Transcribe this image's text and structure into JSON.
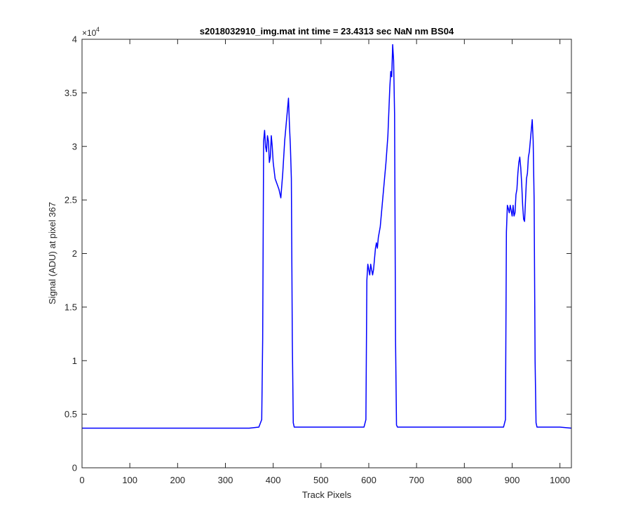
{
  "chart_data": {
    "type": "line",
    "title": "s2018032910_img.mat int time = 23.4313 sec  NaN nm BS04",
    "xlabel": "Track Pixels",
    "ylabel": "Signal (ADU) at pixel 367",
    "xlim": [
      0,
      1024
    ],
    "ylim": [
      0,
      40000
    ],
    "xticks": [
      0,
      100,
      200,
      300,
      400,
      500,
      600,
      700,
      800,
      900,
      1000
    ],
    "yticks": [
      0,
      5000,
      10000,
      15000,
      20000,
      25000,
      30000,
      35000,
      40000
    ],
    "xtick_labels": [
      "0",
      "100",
      "200",
      "300",
      "400",
      "500",
      "600",
      "700",
      "800",
      "900",
      "1000"
    ],
    "ytick_labels": [
      "0",
      "0.5",
      "1",
      "1.5",
      "2",
      "2.5",
      "3",
      "3.5",
      "4"
    ],
    "y_exponent_base": "×10",
    "y_exponent_power": "4",
    "grid": false,
    "legend": "none",
    "series": [
      {
        "color": "#0000ff",
        "x": [
          0,
          50,
          100,
          150,
          200,
          250,
          300,
          350,
          370,
          376,
          378,
          380,
          382,
          384,
          386,
          388,
          390,
          392,
          394,
          396,
          398,
          400,
          404,
          408,
          412,
          416,
          420,
          424,
          426,
          428,
          430,
          432,
          434,
          436,
          438,
          440,
          442,
          444,
          446,
          450,
          500,
          550,
          590,
          594,
          596,
          598,
          600,
          602,
          604,
          606,
          608,
          610,
          612,
          614,
          616,
          618,
          620,
          624,
          628,
          632,
          636,
          640,
          644,
          646,
          648,
          650,
          652,
          654,
          656,
          658,
          660,
          700,
          750,
          800,
          850,
          882,
          886,
          888,
          890,
          892,
          894,
          896,
          898,
          900,
          902,
          904,
          906,
          908,
          910,
          912,
          914,
          916,
          918,
          920,
          922,
          924,
          926,
          928,
          930,
          932,
          934,
          936,
          938,
          940,
          942,
          944,
          946,
          948,
          950,
          952,
          954,
          980,
          1000,
          1024
        ],
        "y": [
          3700,
          3700,
          3700,
          3700,
          3700,
          3700,
          3700,
          3700,
          3800,
          4500,
          12000,
          30500,
          31500,
          30000,
          29500,
          31000,
          30500,
          28500,
          29000,
          31000,
          30000,
          28500,
          27000,
          26500,
          26000,
          25200,
          27500,
          30500,
          31500,
          32500,
          33500,
          34500,
          32000,
          30000,
          27000,
          12000,
          4200,
          3800,
          3800,
          3800,
          3800,
          3800,
          3800,
          4500,
          17500,
          19000,
          18500,
          18000,
          19000,
          18500,
          18000,
          18500,
          19500,
          20500,
          21000,
          20500,
          21500,
          22500,
          24500,
          26500,
          28500,
          31000,
          35500,
          37000,
          36500,
          39500,
          38000,
          33000,
          12000,
          4000,
          3800,
          3800,
          3800,
          3800,
          3800,
          3800,
          4500,
          22000,
          24500,
          24200,
          23800,
          24500,
          24000,
          23500,
          24500,
          23500,
          23800,
          25500,
          26000,
          27500,
          28500,
          29000,
          28000,
          26500,
          24500,
          23200,
          23000,
          25000,
          27000,
          27500,
          29000,
          29500,
          30500,
          31500,
          32500,
          30500,
          25000,
          10000,
          4200,
          3800,
          3800,
          3800,
          3800,
          3700
        ]
      }
    ]
  }
}
